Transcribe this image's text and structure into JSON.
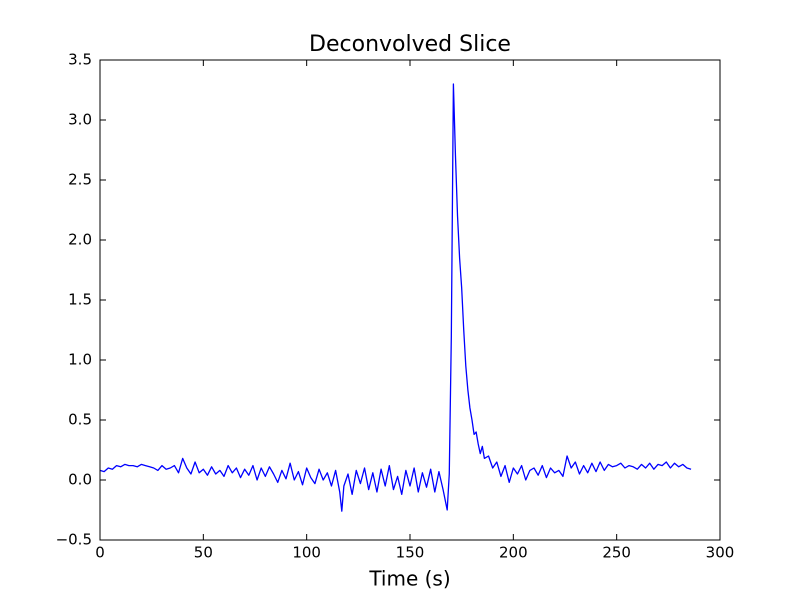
{
  "chart_data": {
    "type": "line",
    "title": "Deconvolved Slice",
    "x_label": "Time (s)",
    "x": [
      0,
      2,
      4,
      6,
      8,
      10,
      12,
      14,
      16,
      18,
      20,
      22,
      24,
      26,
      28,
      30,
      32,
      34,
      36,
      38,
      40,
      42,
      44,
      46,
      48,
      50,
      52,
      54,
      56,
      58,
      60,
      62,
      64,
      66,
      68,
      70,
      72,
      74,
      76,
      78,
      80,
      82,
      84,
      86,
      88,
      90,
      92,
      94,
      96,
      98,
      100,
      102,
      104,
      106,
      108,
      110,
      112,
      114,
      116,
      117,
      118,
      120,
      122,
      124,
      126,
      128,
      130,
      132,
      134,
      136,
      138,
      140,
      142,
      144,
      146,
      148,
      150,
      152,
      154,
      156,
      158,
      160,
      162,
      164,
      166,
      168,
      169,
      170,
      171,
      172,
      173,
      174,
      175,
      176,
      177,
      178,
      179,
      180,
      181,
      182,
      183,
      184,
      185,
      186,
      188,
      190,
      192,
      194,
      196,
      198,
      200,
      202,
      204,
      206,
      208,
      210,
      212,
      214,
      216,
      218,
      220,
      222,
      224,
      226,
      228,
      230,
      232,
      234,
      236,
      238,
      240,
      242,
      244,
      246,
      248,
      250,
      252,
      254,
      256,
      258,
      260,
      262,
      264,
      266,
      268,
      270,
      272,
      274,
      276,
      278,
      280,
      282,
      284,
      286
    ],
    "values": [
      0.08,
      0.07,
      0.1,
      0.09,
      0.12,
      0.11,
      0.13,
      0.12,
      0.12,
      0.11,
      0.13,
      0.12,
      0.11,
      0.1,
      0.08,
      0.12,
      0.09,
      0.1,
      0.12,
      0.06,
      0.18,
      0.1,
      0.05,
      0.15,
      0.06,
      0.09,
      0.04,
      0.11,
      0.05,
      0.08,
      0.03,
      0.12,
      0.06,
      0.1,
      0.02,
      0.09,
      0.04,
      0.12,
      0.0,
      0.1,
      0.03,
      0.11,
      0.05,
      -0.02,
      0.08,
      0.01,
      0.14,
      0.0,
      0.07,
      -0.04,
      0.1,
      0.02,
      -0.03,
      0.09,
      0.0,
      0.06,
      -0.05,
      0.08,
      -0.1,
      -0.26,
      -0.05,
      0.05,
      -0.12,
      0.08,
      -0.03,
      0.1,
      -0.08,
      0.06,
      -0.1,
      0.09,
      -0.05,
      0.12,
      -0.08,
      0.03,
      -0.12,
      0.08,
      -0.05,
      0.1,
      -0.1,
      0.06,
      -0.06,
      0.09,
      -0.1,
      0.07,
      -0.08,
      -0.25,
      0.05,
      1.2,
      3.3,
      2.7,
      2.2,
      1.85,
      1.6,
      1.25,
      0.95,
      0.75,
      0.6,
      0.5,
      0.38,
      0.4,
      0.3,
      0.22,
      0.28,
      0.18,
      0.2,
      0.1,
      0.15,
      0.03,
      0.12,
      -0.02,
      0.1,
      0.05,
      0.12,
      0.0,
      0.08,
      0.1,
      0.04,
      0.12,
      0.02,
      0.1,
      0.06,
      0.08,
      0.03,
      0.2,
      0.1,
      0.15,
      0.05,
      0.12,
      0.06,
      0.14,
      0.07,
      0.15,
      0.08,
      0.13,
      0.11,
      0.12,
      0.14,
      0.1,
      0.12,
      0.11,
      0.09,
      0.13,
      0.1,
      0.14,
      0.09,
      0.13,
      0.12,
      0.15,
      0.1,
      0.14,
      0.11,
      0.13,
      0.1,
      0.09
    ],
    "color": "#0000ff",
    "xlim": [
      0,
      300
    ],
    "xticks": [
      0,
      50,
      100,
      150,
      200,
      250,
      300
    ],
    "ylim": [
      -0.5,
      3.5
    ],
    "yticks": [
      {
        "value": -0.5,
        "label": "−0.5"
      },
      {
        "value": 0,
        "label": "0.0"
      },
      0.5,
      {
        "value": 1,
        "label": "1.0"
      },
      1.5,
      {
        "value": 2,
        "label": "2.0"
      },
      2.5,
      {
        "value": 3,
        "label": "3.0"
      },
      3.5
    ],
    "grid": false
  }
}
